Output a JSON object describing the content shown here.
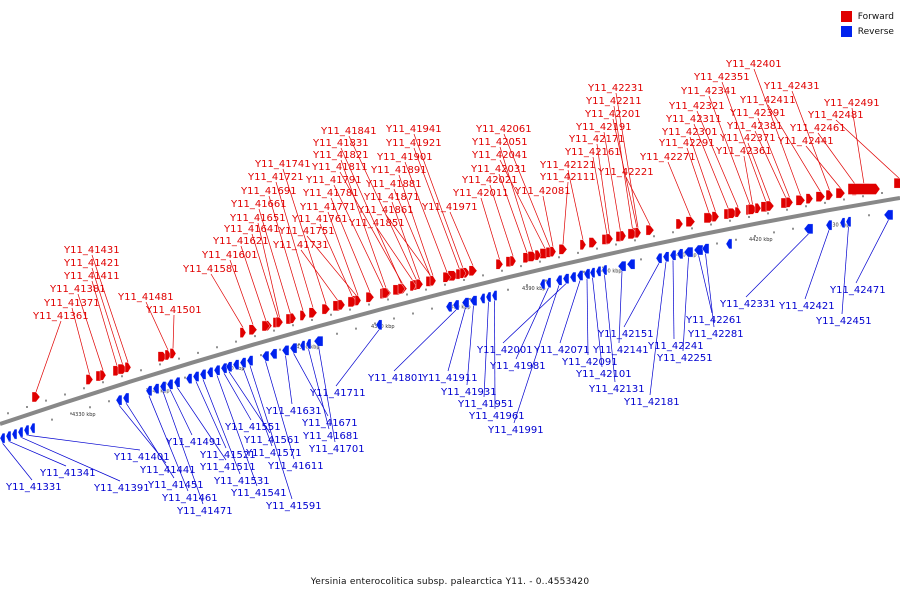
{
  "legend": {
    "forward": {
      "label": "Forward",
      "color": "#e00000"
    },
    "reverse": {
      "label": "Reverse",
      "color": "#0022ee"
    }
  },
  "footer": "Yersinia enterocolitica subsp. palearctica Y11. - 0..4553420",
  "axis_ticks": [
    "4330 kbp",
    "4340 kbp",
    "4350 kbp",
    "4360 kbp",
    "4370 kbp",
    "4380 kbp",
    "4390 kbp",
    "4400 kbp",
    "4410 kbp",
    "4420 kbp",
    "4430 kbp"
  ],
  "forward_genes": [
    "Y11_41361",
    "Y11_41371",
    "Y11_41381",
    "Y11_41411",
    "Y11_41421",
    "Y11_41431",
    "Y11_41481",
    "Y11_41501",
    "Y11_41581",
    "Y11_41601",
    "Y11_41621",
    "Y11_41641",
    "Y11_41651",
    "Y11_41661",
    "Y11_41691",
    "Y11_41721",
    "Y11_41741",
    "Y11_41731",
    "Y11_41751",
    "Y11_41761",
    "Y11_41771",
    "Y11_41781",
    "Y11_41791",
    "Y11_41811",
    "Y11_41821",
    "Y11_41831",
    "Y11_41841",
    "Y11_41851",
    "Y11_41861",
    "Y11_41871",
    "Y11_41881",
    "Y11_41891",
    "Y11_41901",
    "Y11_41921",
    "Y11_41941",
    "Y11_41971",
    "Y11_42011",
    "Y11_42021",
    "Y11_42031",
    "Y11_42041",
    "Y11_42051",
    "Y11_42061",
    "Y11_42081",
    "Y11_42111",
    "Y11_42121",
    "Y11_42161",
    "Y11_42171",
    "Y11_42191",
    "Y11_42201",
    "Y11_42211",
    "Y11_42231",
    "Y11_42221",
    "Y11_42271",
    "Y11_42291",
    "Y11_42301",
    "Y11_42311",
    "Y11_42321",
    "Y11_42341",
    "Y11_42351",
    "Y11_42361",
    "Y11_42371",
    "Y11_42381",
    "Y11_42391",
    "Y11_42401",
    "Y11_42411",
    "Y11_42431",
    "Y11_42441",
    "Y11_42461",
    "Y11_42481",
    "Y11_42491"
  ],
  "reverse_genes": [
    "Y11_41331",
    "Y11_41341",
    "Y11_41391",
    "Y11_41401",
    "Y11_41441",
    "Y11_41451",
    "Y11_41461",
    "Y11_41471",
    "Y11_41491",
    "Y11_41511",
    "Y11_41521",
    "Y11_41531",
    "Y11_41541",
    "Y11_41551",
    "Y11_41561",
    "Y11_41571",
    "Y11_41591",
    "Y11_41611",
    "Y11_41631",
    "Y11_41671",
    "Y11_41681",
    "Y11_41701",
    "Y11_41711",
    "Y11_41801",
    "Y11_41911",
    "Y11_41931",
    "Y11_41951",
    "Y11_41961",
    "Y11_41981",
    "Y11_41991",
    "Y11_42001",
    "Y11_42071",
    "Y11_42091",
    "Y11_42101",
    "Y11_42131",
    "Y11_42141",
    "Y11_42151",
    "Y11_42181",
    "Y11_42241",
    "Y11_42251",
    "Y11_42261",
    "Y11_42281",
    "Y11_42331",
    "Y11_42421",
    "Y11_42451",
    "Y11_42471"
  ]
}
